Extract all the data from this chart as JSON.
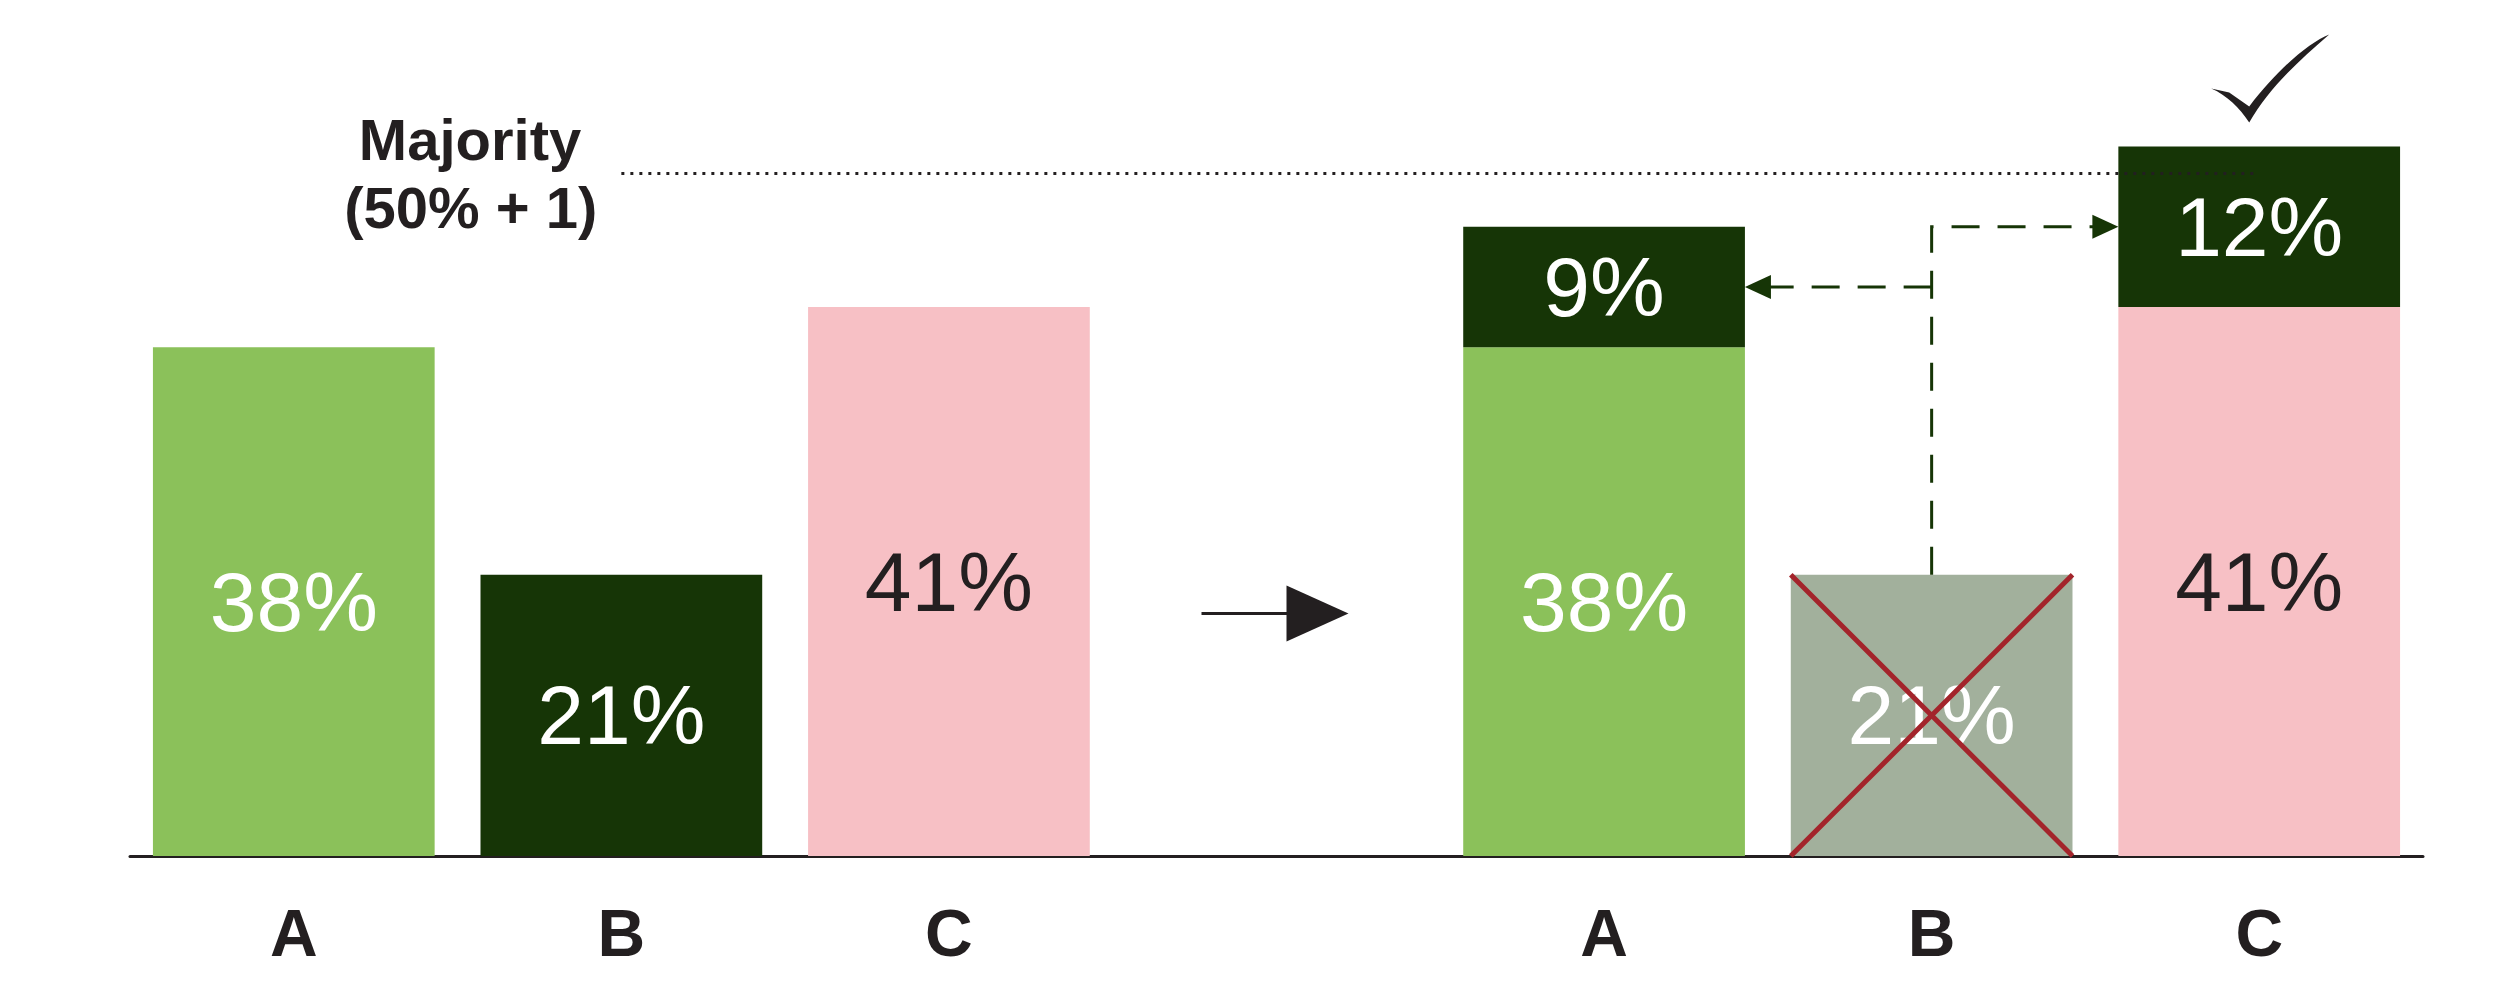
{
  "chart_data": {
    "type": "bar",
    "stacked": true,
    "categories": [
      "A",
      "B",
      "C",
      null,
      "A",
      "B",
      "C"
    ],
    "series": [
      {
        "colors": [
          "#8bc15a",
          "#163506",
          "#f7c0c5",
          null,
          "#8bc15a",
          "#a2b09c",
          "#f7c0c5"
        ],
        "values": [
          38,
          21,
          41,
          null,
          38,
          21,
          41
        ],
        "value_labels": [
          "38%",
          "21%",
          "41%",
          null,
          "38%",
          "21%",
          "41%"
        ]
      },
      {
        "color": "#163506",
        "values": [
          null,
          null,
          null,
          null,
          9,
          null,
          12
        ],
        "value_labels": [
          null,
          null,
          null,
          null,
          "9%",
          null,
          "12%"
        ]
      }
    ],
    "ref_lines": [
      {
        "axis": "y",
        "value": 51,
        "label": "Majority (50% + 1)",
        "color": "#231f20",
        "line_style": "dotted"
      }
    ]
  }
}
